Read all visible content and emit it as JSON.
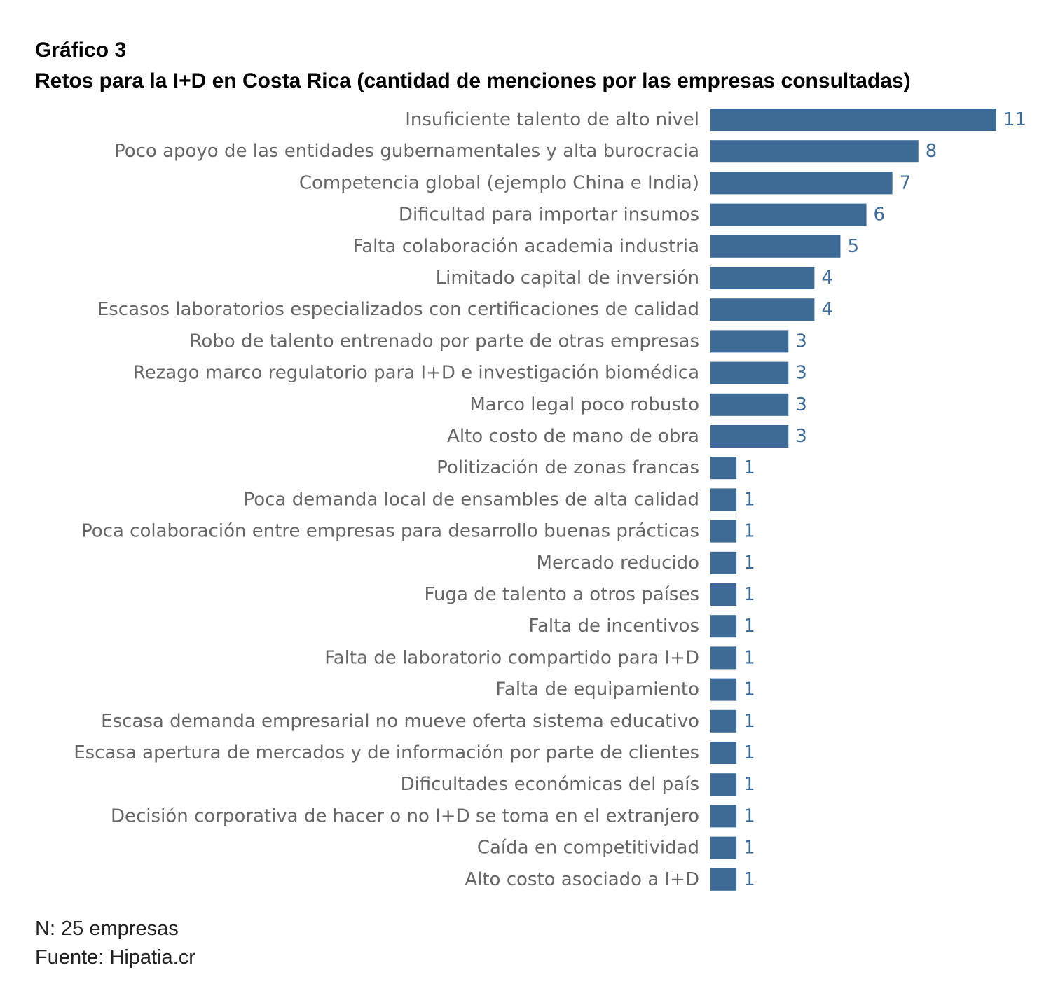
{
  "header": {
    "chart_number": "Gráfico 3",
    "title": "Retos para la I+D en Costa Rica (cantidad de menciones por las empresas consultadas)"
  },
  "footer": {
    "sample": "N: 25 empresas",
    "source": "Fuente: Hipatia.cr"
  },
  "colors": {
    "bar": "#3e6a96",
    "value_label": "#3e6a96",
    "category_label": "#666666"
  },
  "chart_data": {
    "type": "bar",
    "orientation": "horizontal",
    "title": "Retos para la I+D en Costa Rica (cantidad de menciones por las empresas consultadas)",
    "xlabel": "",
    "ylabel": "",
    "xlim": [
      0,
      11
    ],
    "grid": false,
    "data_labels": true,
    "categories": [
      "Insuficiente talento de alto nivel",
      "Poco apoyo de las entidades gubernamentales y alta burocracia",
      "Competencia global (ejemplo China e India)",
      "Dificultad para importar insumos",
      "Falta colaboración academia industria",
      "Limitado capital de inversión",
      "Escasos laboratorios especializados con certificaciones de calidad",
      "Robo de talento entrenado por parte de otras empresas",
      "Rezago marco regulatorio para I+D e investigación biomédica",
      "Marco legal poco robusto",
      "Alto costo de mano de obra",
      "Politización de zonas francas",
      "Poca demanda local de ensambles de alta calidad",
      "Poca colaboración entre empresas para desarrollo buenas prácticas",
      "Mercado reducido",
      "Fuga de talento a otros países",
      "Falta de incentivos",
      "Falta de laboratorio compartido para I+D",
      "Falta de equipamiento",
      "Escasa demanda empresarial no mueve oferta sistema educativo",
      "Escasa apertura de mercados y de información por parte de clientes",
      "Dificultades económicas del país",
      "Decisión corporativa de hacer o no I+D se toma en el extranjero",
      "Caída en competitividad",
      "Alto costo asociado a I+D"
    ],
    "values": [
      11,
      8,
      7,
      6,
      5,
      4,
      4,
      3,
      3,
      3,
      3,
      1,
      1,
      1,
      1,
      1,
      1,
      1,
      1,
      1,
      1,
      1,
      1,
      1,
      1
    ]
  }
}
